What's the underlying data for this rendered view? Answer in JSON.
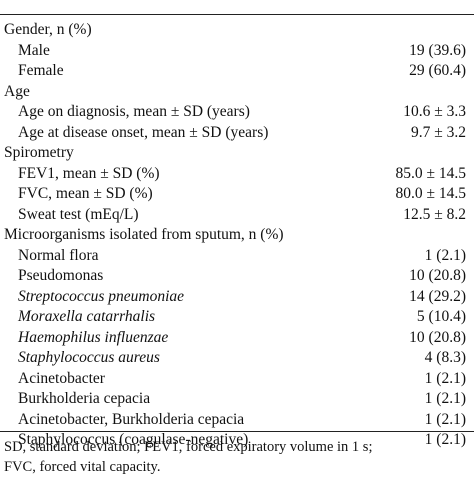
{
  "table": {
    "sections": [
      {
        "label": "Gender, n (%)",
        "rows": [
          {
            "label": "Male",
            "value": "19 (39.6)"
          },
          {
            "label": "Female",
            "value": "29 (60.4)"
          }
        ]
      },
      {
        "label": "Age",
        "rows": [
          {
            "label": "Age on diagnosis, mean ± SD (years)",
            "value": "10.6 ± 3.3"
          },
          {
            "label": "Age at disease onset, mean ± SD (years)",
            "value": "9.7 ± 3.2"
          }
        ]
      },
      {
        "label": "Spirometry",
        "rows": [
          {
            "label": "FEV1, mean ± SD (%)",
            "value": "85.0 ± 14.5"
          },
          {
            "label": "FVC, mean ± SD (%)",
            "value": "80.0 ± 14.5"
          },
          {
            "label": "Sweat test (mEq/L)",
            "value": "12.5 ± 8.2"
          }
        ]
      },
      {
        "label": "Microorganisms isolated from sputum, n (%)",
        "rows": [
          {
            "label": "Normal flora",
            "value": "1 (2.1)"
          },
          {
            "label": "Pseudomonas",
            "value": "10 (20.8)"
          },
          {
            "label": "Streptococcus pneumoniae",
            "value": "14 (29.2)",
            "italic": true
          },
          {
            "label": "Moraxella catarrhalis",
            "value": "5 (10.4)",
            "italic": true
          },
          {
            "label": "Haemophilus influenzae",
            "value": "10 (20.8)",
            "italic": true
          },
          {
            "label": "Staphylococcus aureus",
            "value": "4 (8.3)",
            "italic": true
          },
          {
            "label": "Acinetobacter",
            "value": "1 (2.1)"
          },
          {
            "label": "Burkholderia cepacia",
            "value": "1 (2.1)"
          },
          {
            "label": "Acinetobacter, Burkholderia cepacia",
            "value": "1 (2.1)"
          },
          {
            "label": "Staphylococcus (coagulase-negative)",
            "value": "1 (2.1)"
          }
        ]
      }
    ],
    "footnote": [
      "SD, standard deviation; FEV1, forced expiratory volume in 1 s;",
      "FVC, forced vital capacity."
    ]
  }
}
